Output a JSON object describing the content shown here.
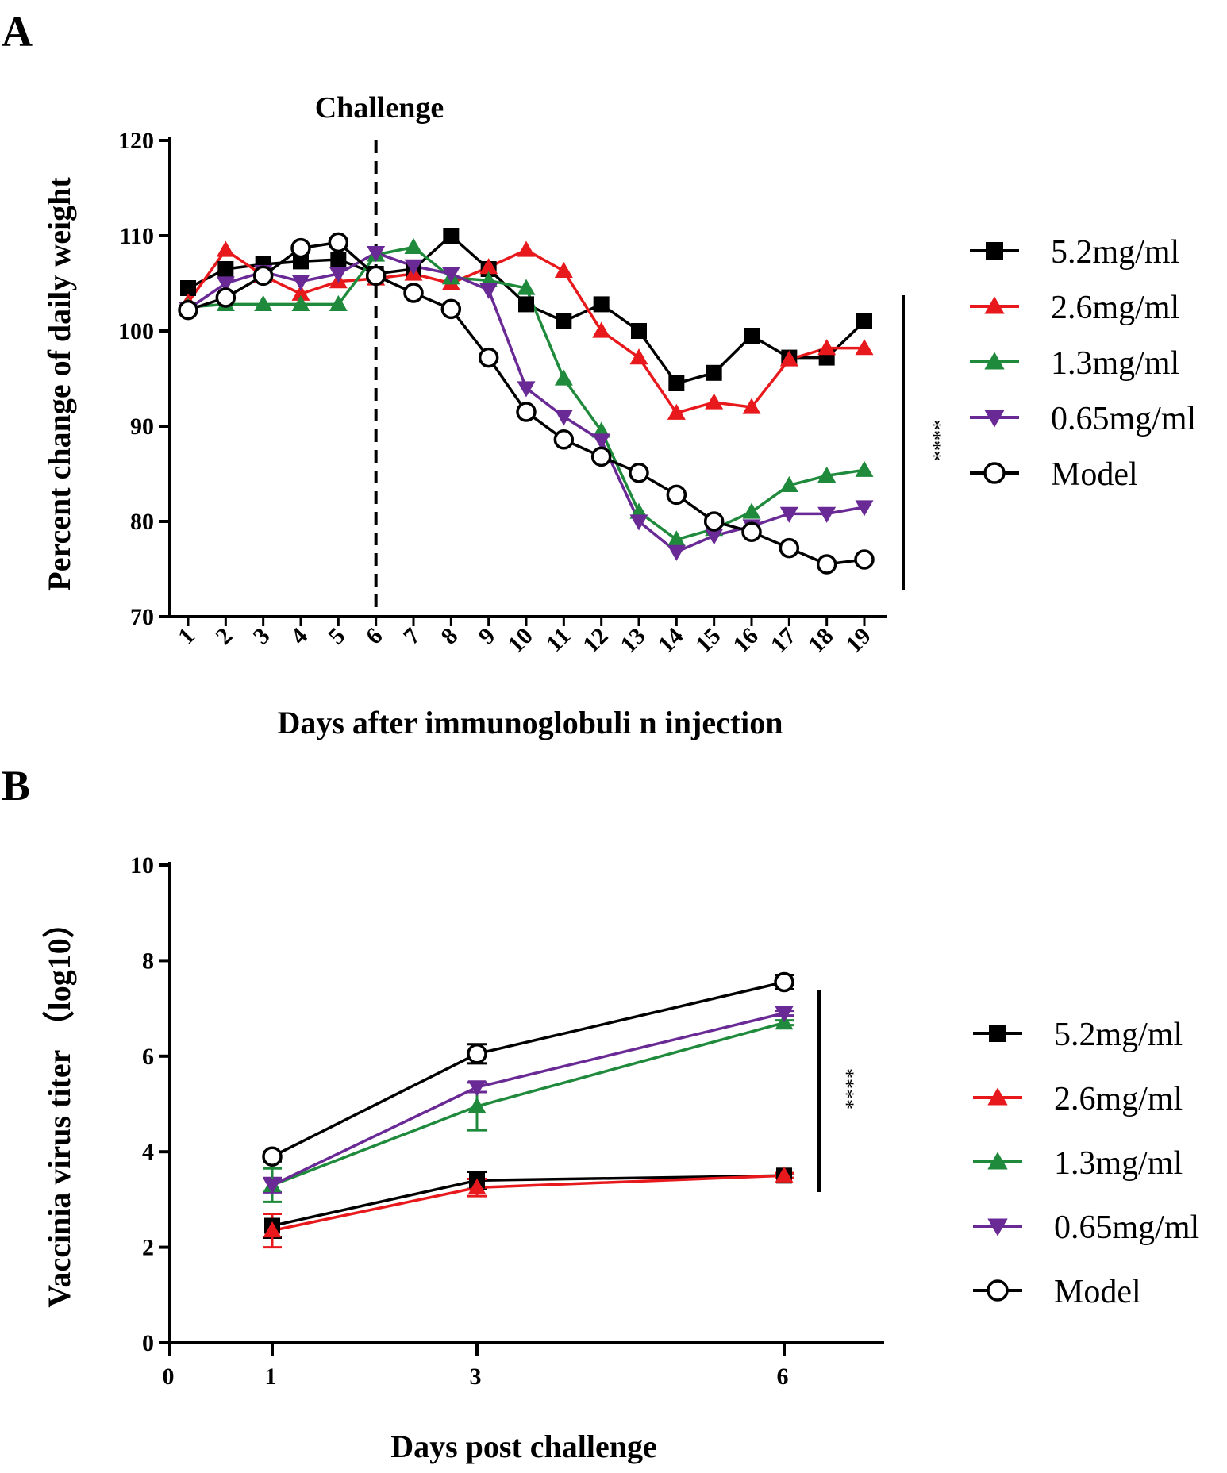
{
  "series_colors": {
    "5.2mg/ml": "#000000",
    "2.6mg/ml": "#e8191c",
    "1.3mg/ml": "#1f8a3c",
    "0.65mg/ml": "#6a2a96",
    "Model": "#000000"
  },
  "chart_data": [
    {
      "panel": "A",
      "type": "line",
      "xlabel": "Days after immunoglobuli n injection",
      "ylabel": "Percent change of daily weight",
      "categories": [
        "1",
        "2",
        "3",
        "4",
        "5",
        "6",
        "7",
        "8",
        "9",
        "10",
        "11",
        "12",
        "13",
        "14",
        "15",
        "16",
        "17",
        "18",
        "19"
      ],
      "ylim": [
        70,
        120
      ],
      "yticks": [
        70,
        80,
        90,
        100,
        110,
        120
      ],
      "annotation": "Challenge",
      "challenge_day": "6",
      "significance": "****",
      "grid": false,
      "legend_position": "right",
      "series": [
        {
          "name": "5.2mg/ml",
          "marker": "square",
          "values": [
            104.5,
            106.5,
            107.0,
            107.3,
            107.5,
            106.0,
            106.5,
            110.0,
            106.5,
            102.8,
            101.0,
            102.8,
            100.0,
            94.5,
            95.6,
            99.5,
            97.2,
            97.2,
            101.0
          ]
        },
        {
          "name": "2.6mg/ml",
          "marker": "triangle-up",
          "values": [
            103.0,
            108.5,
            105.8,
            103.9,
            105.2,
            105.5,
            106.0,
            105.0,
            106.7,
            108.5,
            106.3,
            100.0,
            97.2,
            91.4,
            92.5,
            92.0,
            97.0,
            98.2,
            98.2
          ]
        },
        {
          "name": "1.3mg/ml",
          "marker": "triangle-up",
          "values": [
            102.5,
            102.8,
            102.8,
            102.8,
            102.8,
            108.0,
            108.8,
            105.6,
            105.3,
            104.5,
            95.0,
            89.5,
            81.0,
            78.1,
            79.2,
            81.0,
            83.8,
            84.8,
            85.4
          ]
        },
        {
          "name": "0.65mg/ml",
          "marker": "triangle-down",
          "values": [
            102.3,
            105.0,
            106.2,
            105.2,
            106.0,
            108.2,
            106.8,
            106.0,
            104.3,
            94.0,
            91.0,
            88.5,
            80.0,
            76.8,
            78.5,
            79.5,
            80.8,
            80.8,
            81.5
          ]
        },
        {
          "name": "Model",
          "marker": "circle-open",
          "values": [
            102.2,
            103.5,
            105.8,
            108.7,
            109.3,
            105.8,
            104.0,
            102.3,
            97.2,
            91.5,
            88.6,
            86.8,
            85.1,
            82.8,
            80.0,
            78.9,
            77.2,
            75.5,
            76.0
          ]
        }
      ]
    },
    {
      "panel": "B",
      "type": "line",
      "xlabel": "Days post challenge",
      "ylabel": "Vaccinia virus titer （log10）",
      "xticks": [
        0,
        1,
        3,
        6
      ],
      "xlim": [
        0,
        7
      ],
      "ylim": [
        0,
        10
      ],
      "yticks": [
        0,
        2,
        4,
        6,
        8,
        10
      ],
      "significance": "****",
      "grid": false,
      "legend_position": "right",
      "series": [
        {
          "name": "5.2mg/ml",
          "marker": "square",
          "x": [
            1,
            3,
            6
          ],
          "values": [
            2.45,
            3.4,
            3.5
          ],
          "error": [
            0.25,
            0.18,
            0.05
          ]
        },
        {
          "name": "2.6mg/ml",
          "marker": "triangle-up",
          "x": [
            1,
            3,
            6
          ],
          "values": [
            2.35,
            3.25,
            3.5
          ],
          "error": [
            0.35,
            0.18,
            0.05
          ]
        },
        {
          "name": "1.3mg/ml",
          "marker": "triangle-up",
          "x": [
            1,
            3,
            6
          ],
          "values": [
            3.3,
            4.95,
            6.7
          ],
          "error": [
            0.35,
            0.5,
            0.05
          ]
        },
        {
          "name": "0.65mg/ml",
          "marker": "triangle-down",
          "x": [
            1,
            3,
            6
          ],
          "values": [
            3.3,
            5.35,
            6.9
          ],
          "error": [
            0.15,
            0.1,
            0.05
          ]
        },
        {
          "name": "Model",
          "marker": "circle-open",
          "x": [
            1,
            3,
            6
          ],
          "values": [
            3.9,
            6.05,
            7.55
          ],
          "error": [
            0.1,
            0.2,
            0.15
          ]
        }
      ]
    }
  ],
  "panels": {
    "a_label": "A",
    "b_label": "B"
  }
}
